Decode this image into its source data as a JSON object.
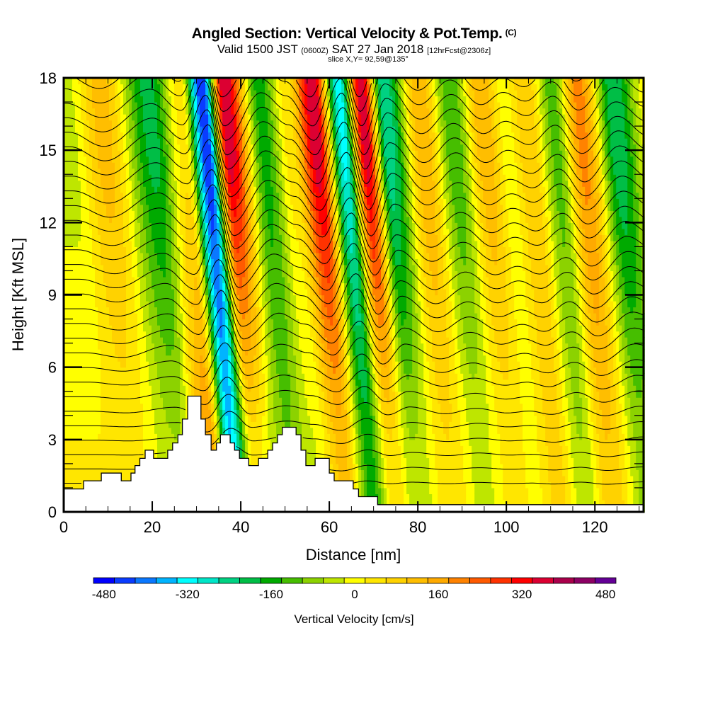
{
  "header": {
    "title": "Angled Section: Vertical Velocity & Pot.Temp.",
    "title_mark": "(C)",
    "valid_prefix": "Valid 1500 JST",
    "valid_utc": "(0600Z)",
    "valid_date": "SAT 27 Jan 2018",
    "forecast": "[12hrFcst@2306z]",
    "slice": "slice X,Y= 92,59@135°"
  },
  "chart_data": {
    "type": "heatmap",
    "title": "Angled Section: Vertical Velocity & Pot.Temp.",
    "xlabel": "Distance [nm]",
    "ylabel": "Height [Kft MSL]",
    "xlim": [
      0,
      131
    ],
    "ylim": [
      0,
      18
    ],
    "x_ticks": [
      0,
      20,
      40,
      60,
      80,
      100,
      120
    ],
    "x_tick_labels": [
      "0",
      "20",
      "40",
      "60",
      "80",
      "100",
      "120"
    ],
    "x_minor_step": 5,
    "y_ticks": [
      0,
      3,
      6,
      9,
      12,
      15,
      18
    ],
    "y_tick_labels": [
      "0",
      "3",
      "6",
      "9",
      "12",
      "15",
      "18"
    ],
    "y_minor_step": 1,
    "grid": false,
    "colorbar": {
      "title": "Vertical Velocity [cm/s]",
      "min": -500,
      "max": 500,
      "step": 40,
      "tick_values": [
        -480,
        -320,
        -160,
        0,
        160,
        320,
        480
      ],
      "tick_labels": [
        "-480",
        "-320",
        "-160",
        "0",
        "160",
        "320",
        "480"
      ],
      "colors": [
        "#0000ff",
        "#0a3cff",
        "#0a78ff",
        "#00b4ff",
        "#00ffff",
        "#00e6c8",
        "#00d282",
        "#00be46",
        "#00aa00",
        "#46be00",
        "#8cd200",
        "#bee600",
        "#ffff00",
        "#ffe600",
        "#ffd200",
        "#ffbe00",
        "#ffaa00",
        "#ff8200",
        "#ff5a00",
        "#ff3200",
        "#ff0000",
        "#dc0032",
        "#aa004b",
        "#8c0064",
        "#640096"
      ],
      "placement": "bottom"
    },
    "velocity_columns": {
      "description": "Approximate vertical velocity (cm/s) of tilted wave columns: distance of column center at 18 kft (nm), value aloft, value near ground",
      "x_top_nm": [
        0,
        8,
        19,
        26,
        31,
        36,
        44,
        50,
        56,
        62,
        67,
        72,
        80,
        87,
        94,
        99,
        104,
        110,
        116,
        124,
        131
      ],
      "value_aloft": [
        -40,
        120,
        -200,
        40,
        -460,
        380,
        -160,
        40,
        380,
        -320,
        380,
        -260,
        140,
        -140,
        140,
        0,
        100,
        -120,
        200,
        -220,
        0
      ],
      "value_low": [
        20,
        40,
        -60,
        180,
        -340,
        40,
        -100,
        -20,
        120,
        -160,
        60,
        -60,
        60,
        -40,
        40,
        10,
        80,
        -60,
        100,
        -80,
        10
      ],
      "tilt_nm_per_kft": 0.45
    },
    "terrain": {
      "description": "Terrain height (kft MSL) step profile along section",
      "x_nm": [
        0,
        4.5,
        8.5,
        13,
        15.2,
        16.1,
        17.2,
        18.4,
        20.3,
        23.5,
        24.6,
        25.8,
        26.8,
        28,
        31,
        32,
        33.3,
        34.5,
        35.4,
        37.6,
        38.6,
        39.7,
        41.8,
        44,
        46.1,
        47.2,
        48.3,
        49.4,
        52.5,
        53.6,
        54.7,
        56.8,
        60,
        61.1,
        65.4,
        66.6,
        70.9
      ],
      "height_kft": [
        0.95,
        1.29,
        1.61,
        1.29,
        1.61,
        1.92,
        2.22,
        2.56,
        2.22,
        2.56,
        2.86,
        3.2,
        3.85,
        4.8,
        3.85,
        3.2,
        2.56,
        2.86,
        3.2,
        2.86,
        2.56,
        2.22,
        1.92,
        2.22,
        2.56,
        2.86,
        3.2,
        3.51,
        3.2,
        2.56,
        1.92,
        2.22,
        1.61,
        1.29,
        0.95,
        0.63,
        0.3
      ],
      "x_end_nm": 131
    },
    "isentropes": {
      "description": "Potential temperature contours (K), every 2 K",
      "levels_count": 30,
      "contour_interval": 2
    }
  }
}
